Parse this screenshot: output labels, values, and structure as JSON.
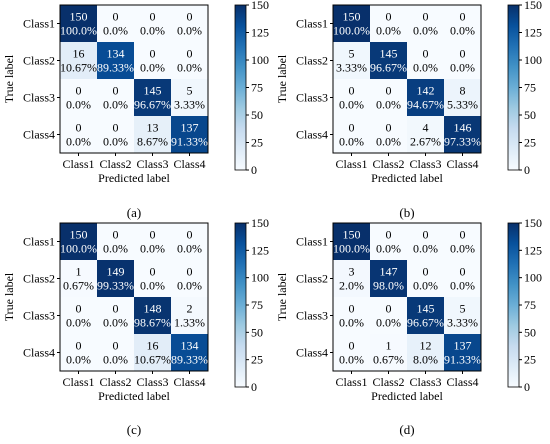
{
  "figure": {
    "colors": {
      "low": "#f7fbff",
      "high": "#08306b",
      "text_dark": "#000000",
      "text_light": "#ffffff",
      "cell_border": "#000000"
    }
  },
  "chart_data": [
    {
      "type": "heatmap",
      "caption": "(a)",
      "xlabel": "Predicted label",
      "ylabel": "True label",
      "x_categories": [
        "Class1",
        "Class2",
        "Class3",
        "Class4"
      ],
      "y_categories": [
        "Class1",
        "Class2",
        "Class3",
        "Class4"
      ],
      "counts": [
        [
          150,
          0,
          0,
          0
        ],
        [
          16,
          134,
          0,
          0
        ],
        [
          0,
          0,
          145,
          5
        ],
        [
          0,
          0,
          13,
          137
        ]
      ],
      "percents": [
        [
          "100.0%",
          "0.0%",
          "0.0%",
          "0.0%"
        ],
        [
          "10.67%",
          "89.33%",
          "0.0%",
          "0.0%"
        ],
        [
          "0.0%",
          "0.0%",
          "96.67%",
          "3.33%"
        ],
        [
          "0.0%",
          "0.0%",
          "8.67%",
          "91.33%"
        ]
      ],
      "colorbar": {
        "range": [
          0,
          150
        ],
        "ticks": [
          0,
          25,
          50,
          75,
          100,
          125,
          150
        ]
      }
    },
    {
      "type": "heatmap",
      "caption": "(b)",
      "xlabel": "Predicted label",
      "ylabel": "True label",
      "x_categories": [
        "Class1",
        "Class2",
        "Class3",
        "Class4"
      ],
      "y_categories": [
        "Class1",
        "Class2",
        "Class3",
        "Class4"
      ],
      "counts": [
        [
          150,
          0,
          0,
          0
        ],
        [
          5,
          145,
          0,
          0
        ],
        [
          0,
          0,
          142,
          8
        ],
        [
          0,
          0,
          4,
          146
        ]
      ],
      "percents": [
        [
          "100.0%",
          "0.0%",
          "0.0%",
          "0.0%"
        ],
        [
          "3.33%",
          "96.67%",
          "0.0%",
          "0.0%"
        ],
        [
          "0.0%",
          "0.0%",
          "94.67%",
          "5.33%"
        ],
        [
          "0.0%",
          "0.0%",
          "2.67%",
          "97.33%"
        ]
      ],
      "colorbar": {
        "range": [
          0,
          150
        ],
        "ticks": [
          0,
          25,
          50,
          75,
          100,
          125,
          150
        ]
      }
    },
    {
      "type": "heatmap",
      "caption": "(c)",
      "xlabel": "Predicted label",
      "ylabel": "True label",
      "x_categories": [
        "Class1",
        "Class2",
        "Class3",
        "Class4"
      ],
      "y_categories": [
        "Class1",
        "Class2",
        "Class3",
        "Class4"
      ],
      "counts": [
        [
          150,
          0,
          0,
          0
        ],
        [
          1,
          149,
          0,
          0
        ],
        [
          0,
          0,
          148,
          2
        ],
        [
          0,
          0,
          16,
          134
        ]
      ],
      "percents": [
        [
          "100.0%",
          "0.0%",
          "0.0%",
          "0.0%"
        ],
        [
          "0.67%",
          "99.33%",
          "0.0%",
          "0.0%"
        ],
        [
          "0.0%",
          "0.0%",
          "98.67%",
          "1.33%"
        ],
        [
          "0.0%",
          "0.0%",
          "10.67%",
          "89.33%"
        ]
      ],
      "colorbar": {
        "range": [
          0,
          150
        ],
        "ticks": [
          0,
          25,
          50,
          75,
          100,
          125,
          150
        ]
      }
    },
    {
      "type": "heatmap",
      "caption": "(d)",
      "xlabel": "Predicted label",
      "ylabel": "True label",
      "x_categories": [
        "Class1",
        "Class2",
        "Class3",
        "Class4"
      ],
      "y_categories": [
        "Class1",
        "Class2",
        "Class3",
        "Class4"
      ],
      "counts": [
        [
          150,
          0,
          0,
          0
        ],
        [
          3,
          147,
          0,
          0
        ],
        [
          0,
          0,
          145,
          5
        ],
        [
          0,
          1,
          12,
          137
        ]
      ],
      "percents": [
        [
          "100.0%",
          "0.0%",
          "0.0%",
          "0.0%"
        ],
        [
          "2.0%",
          "98.0%",
          "0.0%",
          "0.0%"
        ],
        [
          "0.0%",
          "0.0%",
          "96.67%",
          "3.33%"
        ],
        [
          "0.0%",
          "0.67%",
          "8.0%",
          "91.33%"
        ]
      ],
      "colorbar": {
        "range": [
          0,
          150
        ],
        "ticks": [
          0,
          25,
          50,
          75,
          100,
          125,
          150
        ]
      }
    }
  ]
}
